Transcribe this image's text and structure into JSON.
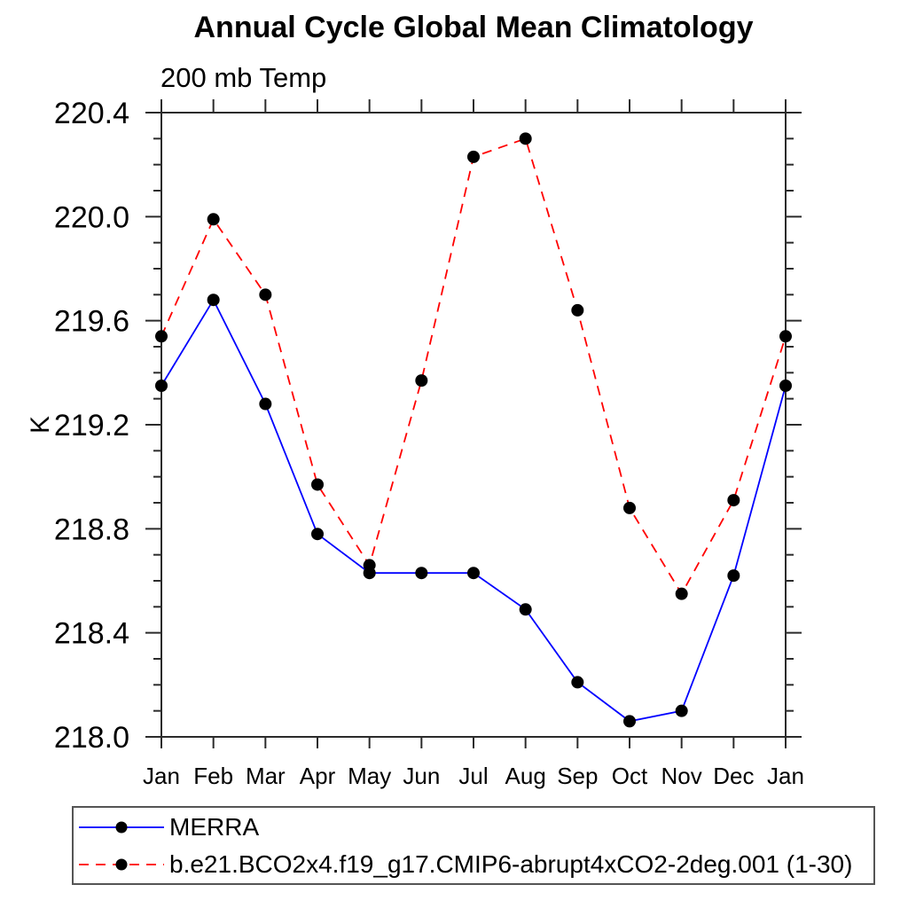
{
  "page": {
    "background": "#ffffff"
  },
  "chart_data": {
    "type": "line",
    "title": "Annual Cycle Global Mean Climatology",
    "subtitle": "200 mb Temp",
    "ylabel": "K",
    "xlabel": "",
    "x_categories": [
      "Jan",
      "Feb",
      "Mar",
      "Apr",
      "May",
      "Jun",
      "Jul",
      "Aug",
      "Sep",
      "Oct",
      "Nov",
      "Dec",
      "Jan"
    ],
    "ylim": [
      218.0,
      220.4
    ],
    "ytick_major_step": 0.4,
    "ytick_minor_step": 0.1,
    "ytick_labels": [
      "218.0",
      "218.4",
      "218.8",
      "219.2",
      "219.6",
      "220.0",
      "220.4"
    ],
    "grid": false,
    "frame_all_sides": true,
    "marker": {
      "shape": "filled-circle",
      "color": "#000000",
      "radius": 7
    },
    "series": [
      {
        "name": "MERRA",
        "color": "#0000ff",
        "line_style": "solid",
        "values": [
          219.35,
          219.68,
          219.28,
          218.78,
          218.63,
          218.63,
          218.63,
          218.49,
          218.21,
          218.06,
          218.1,
          218.62,
          219.35
        ]
      },
      {
        "name": "b.e21.BCO2x4.f19_g17.CMIP6-abrupt4xCO2-2deg.001 (1-30)",
        "color": "#ff0000",
        "line_style": "dashed",
        "values": [
          219.54,
          219.99,
          219.7,
          218.97,
          218.66,
          219.37,
          220.23,
          220.3,
          219.64,
          218.88,
          218.55,
          218.91,
          219.54
        ]
      }
    ],
    "legend_position": "bottom-left"
  },
  "colors": {
    "axis": "#2b2b2b",
    "text": "#000000",
    "legend_border": "#555555"
  }
}
